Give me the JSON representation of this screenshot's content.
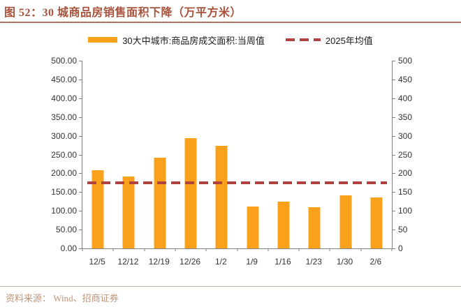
{
  "figure": {
    "title": "图 52：30 城商品房销售面积下降（万平方米）",
    "source_label": "资料来源： Wind、招商证券"
  },
  "legend": {
    "bar_label": "30大中城市:商品房成交面积:当周值",
    "line_label": "2025年均值"
  },
  "colors": {
    "bar": "#F9A11B",
    "avg_line": "#B04240",
    "title": "#A8523C",
    "title_rule": "#A9735C",
    "source_text": "#BF9579",
    "axis": "#7F7F7F",
    "tick_label": "#333333"
  },
  "chart_data": {
    "type": "bar",
    "title": "图 52：30 城商品房销售面积下降（万平方米）",
    "categories": [
      "12/5",
      "12/12",
      "12/19",
      "12/26",
      "1/2",
      "1/9",
      "1/16",
      "1/23",
      "1/30",
      "2/6"
    ],
    "series": [
      {
        "name": "30大中城市:商品房成交面积:当周值",
        "values": [
          208,
          192,
          242,
          294,
          273,
          111,
          125,
          110,
          141,
          135
        ]
      }
    ],
    "annotation_line": {
      "name": "2025年均值",
      "value": 174,
      "style": "dashed"
    },
    "ylabel": "",
    "xlabel": "",
    "ylim": [
      0,
      500
    ],
    "ytick_step": 50,
    "left_axis_decimals": 2,
    "right_axis_decimals": 0,
    "grid": false,
    "legend_position": "top"
  }
}
